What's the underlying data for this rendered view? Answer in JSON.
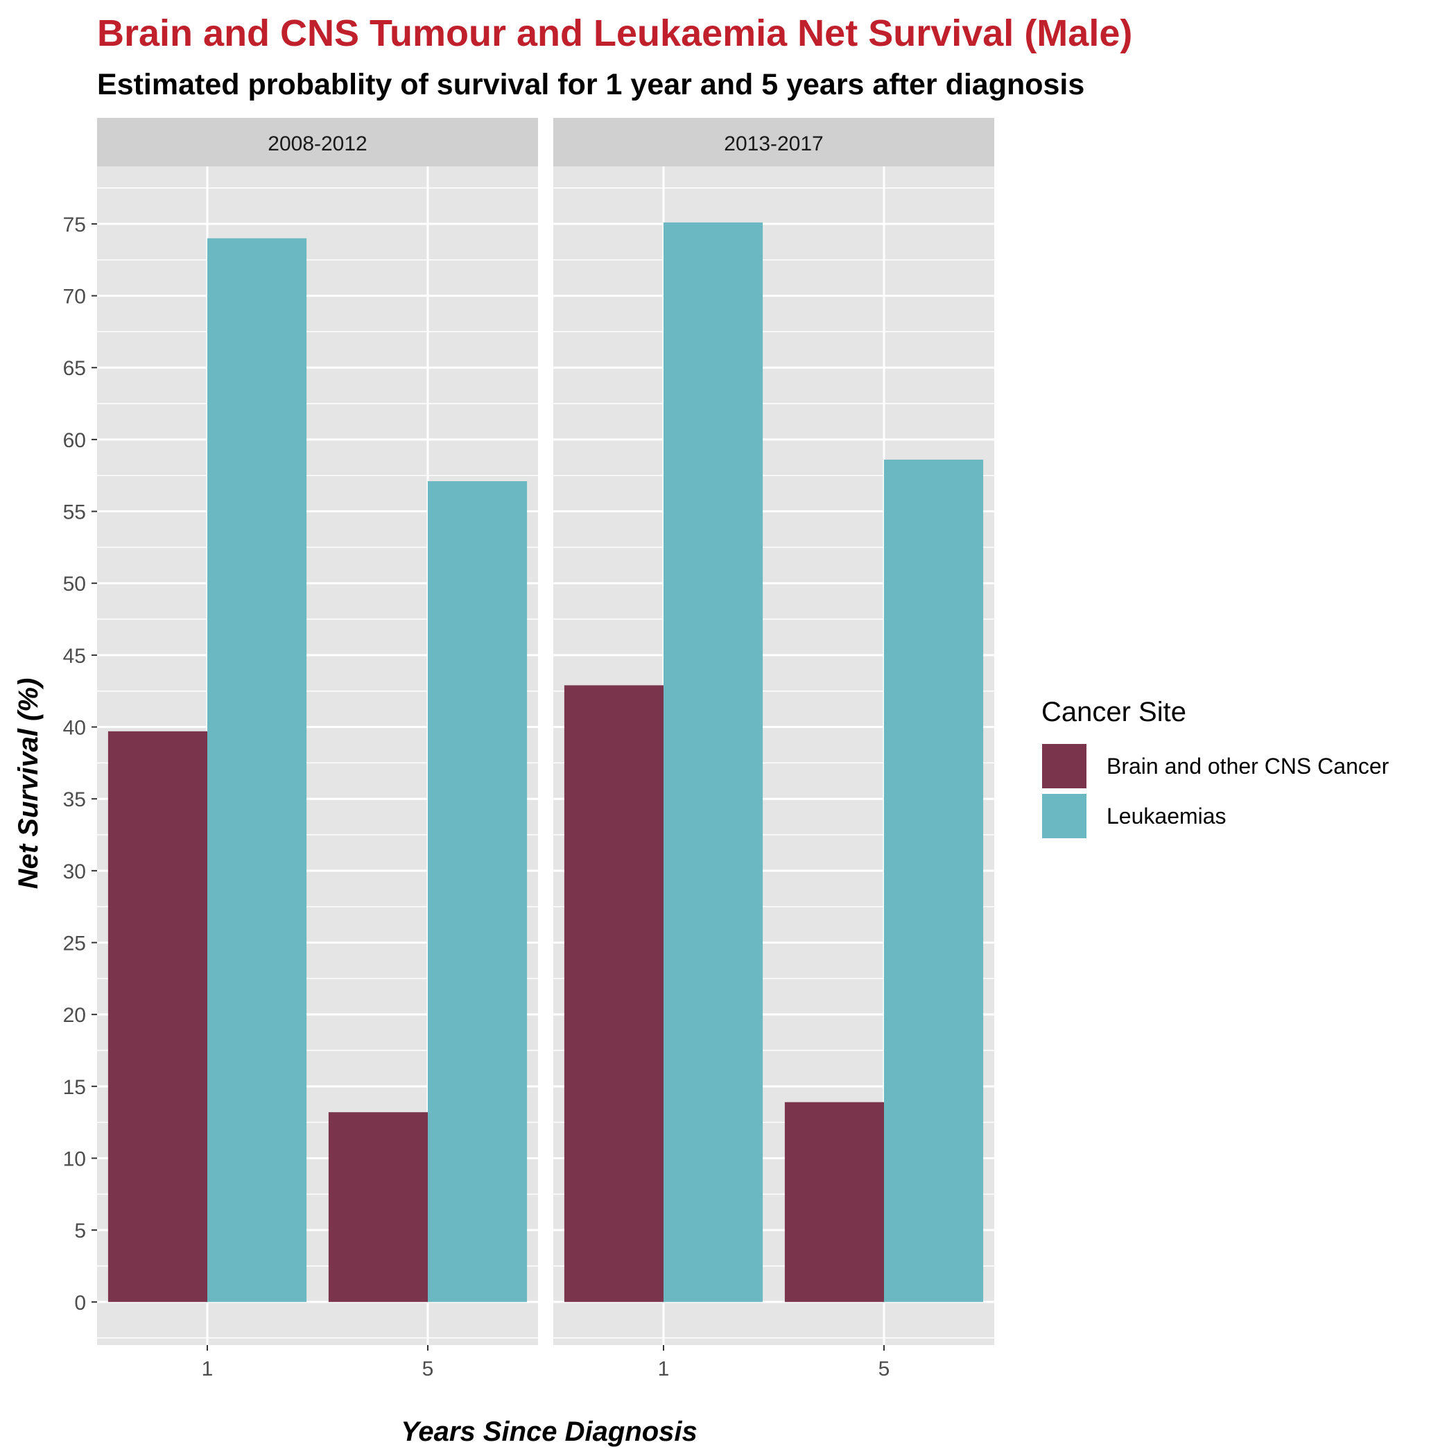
{
  "chart_data": {
    "type": "bar",
    "title": "Brain and CNS Tumour and Leukaemia Net Survival (Male)",
    "subtitle": "Estimated probablity of survival for 1 year and 5 years after diagnosis",
    "xlabel": "Years Since Diagnosis",
    "ylabel": "Net Survival (%)",
    "ylim": [
      -3,
      79
    ],
    "yticks": [
      0,
      5,
      10,
      15,
      20,
      25,
      30,
      35,
      40,
      45,
      50,
      55,
      60,
      65,
      70,
      75
    ],
    "categories": [
      "1",
      "5"
    ],
    "legend": {
      "title": "Cancer Site",
      "position": "right"
    },
    "series": [
      {
        "name": "Brain and other CNS Cancer",
        "color": "#7a344b"
      },
      {
        "name": "Leukaemias",
        "color": "#6bb7c2"
      }
    ],
    "facets": [
      {
        "label": "2008-2012",
        "values": {
          "Brain and other CNS Cancer": [
            39.7,
            13.2
          ],
          "Leukaemias": [
            74.0,
            57.1
          ]
        }
      },
      {
        "label": "2013-2017",
        "values": {
          "Brain and other CNS Cancer": [
            42.9,
            13.9
          ],
          "Leukaemias": [
            75.1,
            58.6
          ]
        }
      }
    ],
    "grid": true,
    "panel_background": "#e5e5e5",
    "strip_background": "#d0d0d0"
  }
}
